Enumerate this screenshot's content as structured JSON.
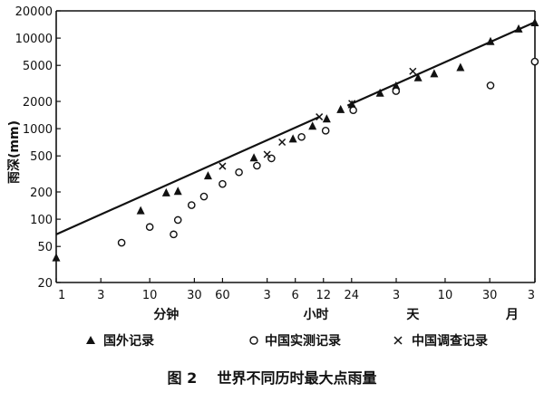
{
  "chart_data": {
    "type": "scatter",
    "caption": "图 2    世界不同历时最大点雨量",
    "ylabel": "雨深(mm)",
    "y_scale": "log",
    "x_scale": "log",
    "ylim": [
      20,
      20000
    ],
    "y_ticks": [
      {
        "value": 20,
        "label": "20"
      },
      {
        "value": 50,
        "label": "50"
      },
      {
        "value": 100,
        "label": "100"
      },
      {
        "value": 200,
        "label": "200"
      },
      {
        "value": 500,
        "label": "500"
      },
      {
        "value": 1000,
        "label": "1000"
      },
      {
        "value": 2000,
        "label": "2000"
      },
      {
        "value": 5000,
        "label": "5000"
      },
      {
        "value": 10000,
        "label": "10000"
      },
      {
        "value": 20000,
        "label": "20000"
      }
    ],
    "x_unit": "minutes",
    "xlim": [
      1,
      131400
    ],
    "x_ticks": [
      {
        "minutes": 1,
        "label": "1"
      },
      {
        "minutes": 3,
        "label": "3"
      },
      {
        "minutes": 10,
        "label": "10"
      },
      {
        "minutes": 30,
        "label": "30"
      },
      {
        "minutes": 60,
        "label": "60"
      },
      {
        "minutes": 180,
        "label": "3"
      },
      {
        "minutes": 360,
        "label": "6"
      },
      {
        "minutes": 720,
        "label": "12"
      },
      {
        "minutes": 1440,
        "label": "24"
      },
      {
        "minutes": 4320,
        "label": "3"
      },
      {
        "minutes": 14400,
        "label": "10"
      },
      {
        "minutes": 43200,
        "label": "30"
      },
      {
        "minutes": 131400,
        "label": "3"
      }
    ],
    "x_unit_labels": [
      {
        "minutes": 15,
        "label": "分钟"
      },
      {
        "minutes": 600,
        "label": "小时"
      },
      {
        "minutes": 6500,
        "label": "天"
      },
      {
        "minutes": 75000,
        "label": "月"
      }
    ],
    "series": [
      {
        "name": "国外记录",
        "marker": "triangle",
        "points": [
          {
            "x": 1,
            "y": 38
          },
          {
            "x": 8,
            "y": 126
          },
          {
            "x": 15,
            "y": 198
          },
          {
            "x": 20,
            "y": 206
          },
          {
            "x": 42,
            "y": 305
          },
          {
            "x": 130,
            "y": 483
          },
          {
            "x": 340,
            "y": 780
          },
          {
            "x": 550,
            "y": 1080
          },
          {
            "x": 780,
            "y": 1300
          },
          {
            "x": 1100,
            "y": 1650
          },
          {
            "x": 1450,
            "y": 1870
          },
          {
            "x": 2900,
            "y": 2500
          },
          {
            "x": 4300,
            "y": 3000
          },
          {
            "x": 7400,
            "y": 3700
          },
          {
            "x": 11000,
            "y": 4100
          },
          {
            "x": 21000,
            "y": 4800
          },
          {
            "x": 44000,
            "y": 9300
          },
          {
            "x": 88000,
            "y": 12800
          },
          {
            "x": 131000,
            "y": 15000
          }
        ]
      },
      {
        "name": "中国实测记录",
        "marker": "circle",
        "points": [
          {
            "x": 5,
            "y": 55
          },
          {
            "x": 10,
            "y": 82
          },
          {
            "x": 18,
            "y": 68
          },
          {
            "x": 20,
            "y": 98
          },
          {
            "x": 28,
            "y": 143
          },
          {
            "x": 38,
            "y": 178
          },
          {
            "x": 60,
            "y": 245
          },
          {
            "x": 90,
            "y": 330
          },
          {
            "x": 140,
            "y": 390
          },
          {
            "x": 200,
            "y": 470
          },
          {
            "x": 420,
            "y": 810
          },
          {
            "x": 760,
            "y": 950
          },
          {
            "x": 1500,
            "y": 1600
          },
          {
            "x": 4300,
            "y": 2600
          },
          {
            "x": 44000,
            "y": 3000
          },
          {
            "x": 131000,
            "y": 5500
          }
        ]
      },
      {
        "name": "中国调查记录",
        "marker": "x",
        "points": [
          {
            "x": 60,
            "y": 385
          },
          {
            "x": 180,
            "y": 520
          },
          {
            "x": 260,
            "y": 710
          },
          {
            "x": 650,
            "y": 1350
          },
          {
            "x": 1450,
            "y": 1900
          },
          {
            "x": 6500,
            "y": 4300
          }
        ]
      }
    ],
    "envelope_line": {
      "segments": [
        {
          "x": [
            1,
            650
          ],
          "y": [
            68,
            1350
          ]
        },
        {
          "x": [
            1300,
            131000
          ],
          "y": [
            1800,
            15000
          ]
        }
      ]
    }
  }
}
